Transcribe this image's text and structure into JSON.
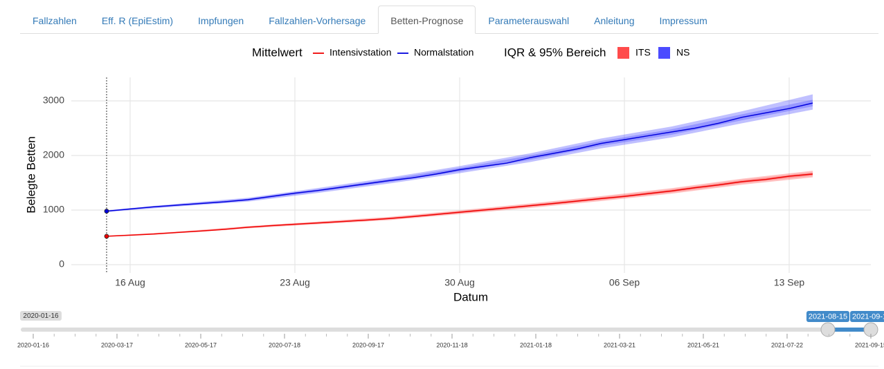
{
  "tabs": {
    "items": [
      "Fallzahlen",
      "Eff. R (EpiEstim)",
      "Impfungen",
      "Fallzahlen-Vorhersage",
      "Betten-Prognose",
      "Parameterauswahl",
      "Anleitung",
      "Impressum"
    ],
    "active": 4
  },
  "chart_data": {
    "type": "line",
    "x_label": "Datum",
    "y_label": "Belegte Betten",
    "legend_line_title": "Mittelwert",
    "legend_band_title": "IQR & 95% Bereich",
    "x": [
      "2021-08-15",
      "2021-08-16",
      "2021-08-17",
      "2021-08-18",
      "2021-08-19",
      "2021-08-20",
      "2021-08-21",
      "2021-08-22",
      "2021-08-23",
      "2021-08-24",
      "2021-08-25",
      "2021-08-26",
      "2021-08-27",
      "2021-08-28",
      "2021-08-29",
      "2021-08-30",
      "2021-08-31",
      "2021-09-01",
      "2021-09-02",
      "2021-09-03",
      "2021-09-04",
      "2021-09-05",
      "2021-09-06",
      "2021-09-07",
      "2021-09-08",
      "2021-09-09",
      "2021-09-10",
      "2021-09-11",
      "2021-09-12",
      "2021-09-13",
      "2021-09-14"
    ],
    "series": [
      {
        "name": "Intensivstation",
        "color": "#ee0000",
        "values": [
          520,
          540,
          560,
          590,
          615,
          645,
          685,
          715,
          740,
          765,
          790,
          815,
          845,
          880,
          920,
          960,
          1000,
          1040,
          1080,
          1120,
          1165,
          1210,
          1250,
          1300,
          1350,
          1410,
          1460,
          1520,
          1560,
          1620,
          1660
        ]
      },
      {
        "name": "Normalstation",
        "color": "#0000dd",
        "values": [
          980,
          1020,
          1060,
          1090,
          1120,
          1150,
          1190,
          1250,
          1310,
          1360,
          1420,
          1480,
          1540,
          1590,
          1660,
          1740,
          1800,
          1860,
          1960,
          2040,
          2120,
          2220,
          2290,
          2360,
          2430,
          2500,
          2590,
          2700,
          2780,
          2860,
          2960
        ]
      }
    ],
    "bands": [
      {
        "name": "ITS",
        "color": "#ff4b4b",
        "x": [
          "2021-08-15",
          "2021-08-18",
          "2021-08-21",
          "2021-08-24",
          "2021-08-27",
          "2021-08-30",
          "2021-09-02",
          "2021-09-05",
          "2021-09-08",
          "2021-09-11",
          "2021-09-14"
        ],
        "lower95": [
          510,
          575,
          665,
          740,
          815,
          925,
          1040,
          1165,
          1300,
          1465,
          1600
        ],
        "upper95": [
          530,
          605,
          705,
          790,
          875,
          995,
          1120,
          1255,
          1400,
          1575,
          1720
        ],
        "lower_iqr": [
          515,
          583,
          676,
          753,
          831,
          943,
          1060,
          1188,
          1325,
          1493,
          1630
        ],
        "upper_iqr": [
          525,
          597,
          694,
          777,
          859,
          977,
          1100,
          1232,
          1375,
          1547,
          1690
        ]
      },
      {
        "name": "NS",
        "color": "#4b4bff",
        "x": [
          "2021-08-15",
          "2021-08-18",
          "2021-08-21",
          "2021-08-24",
          "2021-08-27",
          "2021-08-30",
          "2021-09-02",
          "2021-09-05",
          "2021-09-08",
          "2021-09-11",
          "2021-09-14"
        ],
        "lower95": [
          965,
          1065,
          1155,
          1315,
          1485,
          1675,
          1880,
          2130,
          2330,
          2590,
          2840
        ],
        "upper95": [
          995,
          1115,
          1225,
          1405,
          1595,
          1805,
          2040,
          2310,
          2530,
          2810,
          3120
        ],
        "lower_iqr": [
          972,
          1078,
          1172,
          1338,
          1513,
          1708,
          1920,
          2175,
          2380,
          2645,
          2900
        ],
        "upper_iqr": [
          988,
          1102,
          1208,
          1382,
          1567,
          1772,
          2000,
          2265,
          2480,
          2755,
          3020
        ]
      }
    ],
    "xlim": [
      "2021-08-14",
      "2021-09-16"
    ],
    "xticks": [
      {
        "value": "2021-08-16",
        "label": "16 Aug"
      },
      {
        "value": "2021-08-23",
        "label": "23 Aug"
      },
      {
        "value": "2021-08-30",
        "label": "30 Aug"
      },
      {
        "value": "2021-09-06",
        "label": "06 Sep"
      },
      {
        "value": "2021-09-13",
        "label": "13 Sep"
      }
    ],
    "ylim": [
      -150,
      3400
    ],
    "yticks": [
      0,
      1000,
      2000,
      3000
    ],
    "grid": true
  },
  "slider": {
    "min_label": "2020-01-16",
    "from_label": "2021-08-15",
    "to_label": "2021-09-1",
    "grid_labels": [
      "2020-01-16",
      "2020-03-17",
      "2020-05-17",
      "2020-07-18",
      "2020-09-17",
      "2020-11-18",
      "2021-01-18",
      "2021-03-21",
      "2021-05-21",
      "2021-07-22",
      "2021-09-15"
    ]
  }
}
